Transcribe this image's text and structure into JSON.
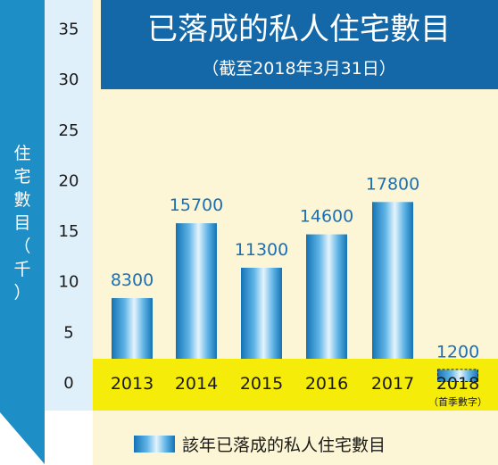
{
  "colors": {
    "ylabel_panel": "#1d8fc6",
    "axis_panel": "#dff0fb",
    "plot_bg": "#fdf6d6",
    "baseline_band": "#f6ec09",
    "title_box": "#1468a8",
    "legend_bg": "#fdf6d6",
    "value_label": "#1a6fb5"
  },
  "chart_data": {
    "type": "bar",
    "title": "已落成的私人住宅數目",
    "subtitle": "（截至2018年3月31日）",
    "ylabel": "住宅數目（千）",
    "ylabel_chars": [
      "住",
      "宅",
      "數",
      "目",
      "（",
      "千",
      "）"
    ],
    "categories": [
      "2013",
      "2014",
      "2015",
      "2016",
      "2017",
      "2018"
    ],
    "category_notes": [
      "",
      "",
      "",
      "",
      "",
      "（首季數字）"
    ],
    "values": [
      8300,
      15700,
      11300,
      14600,
      17800,
      1200
    ],
    "value_labels": [
      "8300",
      "15700",
      "11300",
      "14600",
      "17800",
      "1200"
    ],
    "ylim": [
      0,
      35
    ],
    "yticks": [
      "0",
      "5",
      "10",
      "15",
      "20",
      "25",
      "30",
      "35"
    ],
    "grid": false,
    "legend": {
      "label": "該年已落成的私人住宅數目",
      "position": "bottom-center"
    },
    "series": [
      {
        "name": "該年已落成的私人住宅數目",
        "values": [
          8300,
          15700,
          11300,
          14600,
          17800,
          1200
        ]
      }
    ]
  }
}
